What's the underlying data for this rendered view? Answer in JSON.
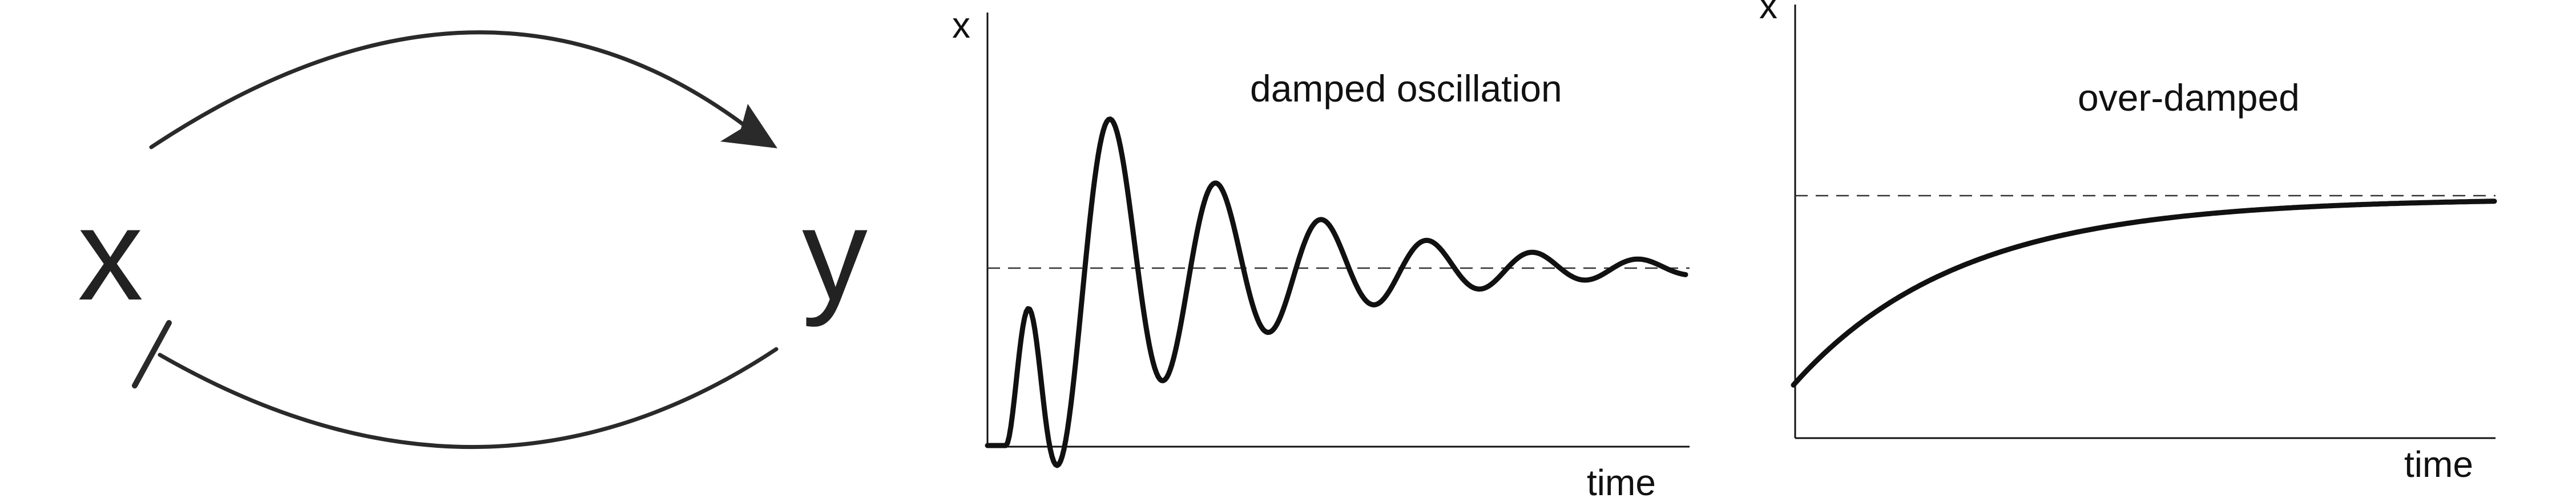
{
  "diagram": {
    "nodes": {
      "x": "x",
      "y": "y"
    },
    "edges": [
      {
        "from": "x",
        "to": "y",
        "type": "activation"
      },
      {
        "from": "y",
        "to": "x",
        "type": "inhibition"
      }
    ]
  },
  "panels": {
    "damped": {
      "title": "damped oscillation",
      "ylabel": "x",
      "xlabel": "time"
    },
    "overdamped": {
      "title": "over-damped",
      "ylabel": "x",
      "xlabel": "time"
    }
  },
  "colors": {
    "ink": "#111111",
    "arc": "#2a2a2a",
    "background": "#ffffff"
  }
}
